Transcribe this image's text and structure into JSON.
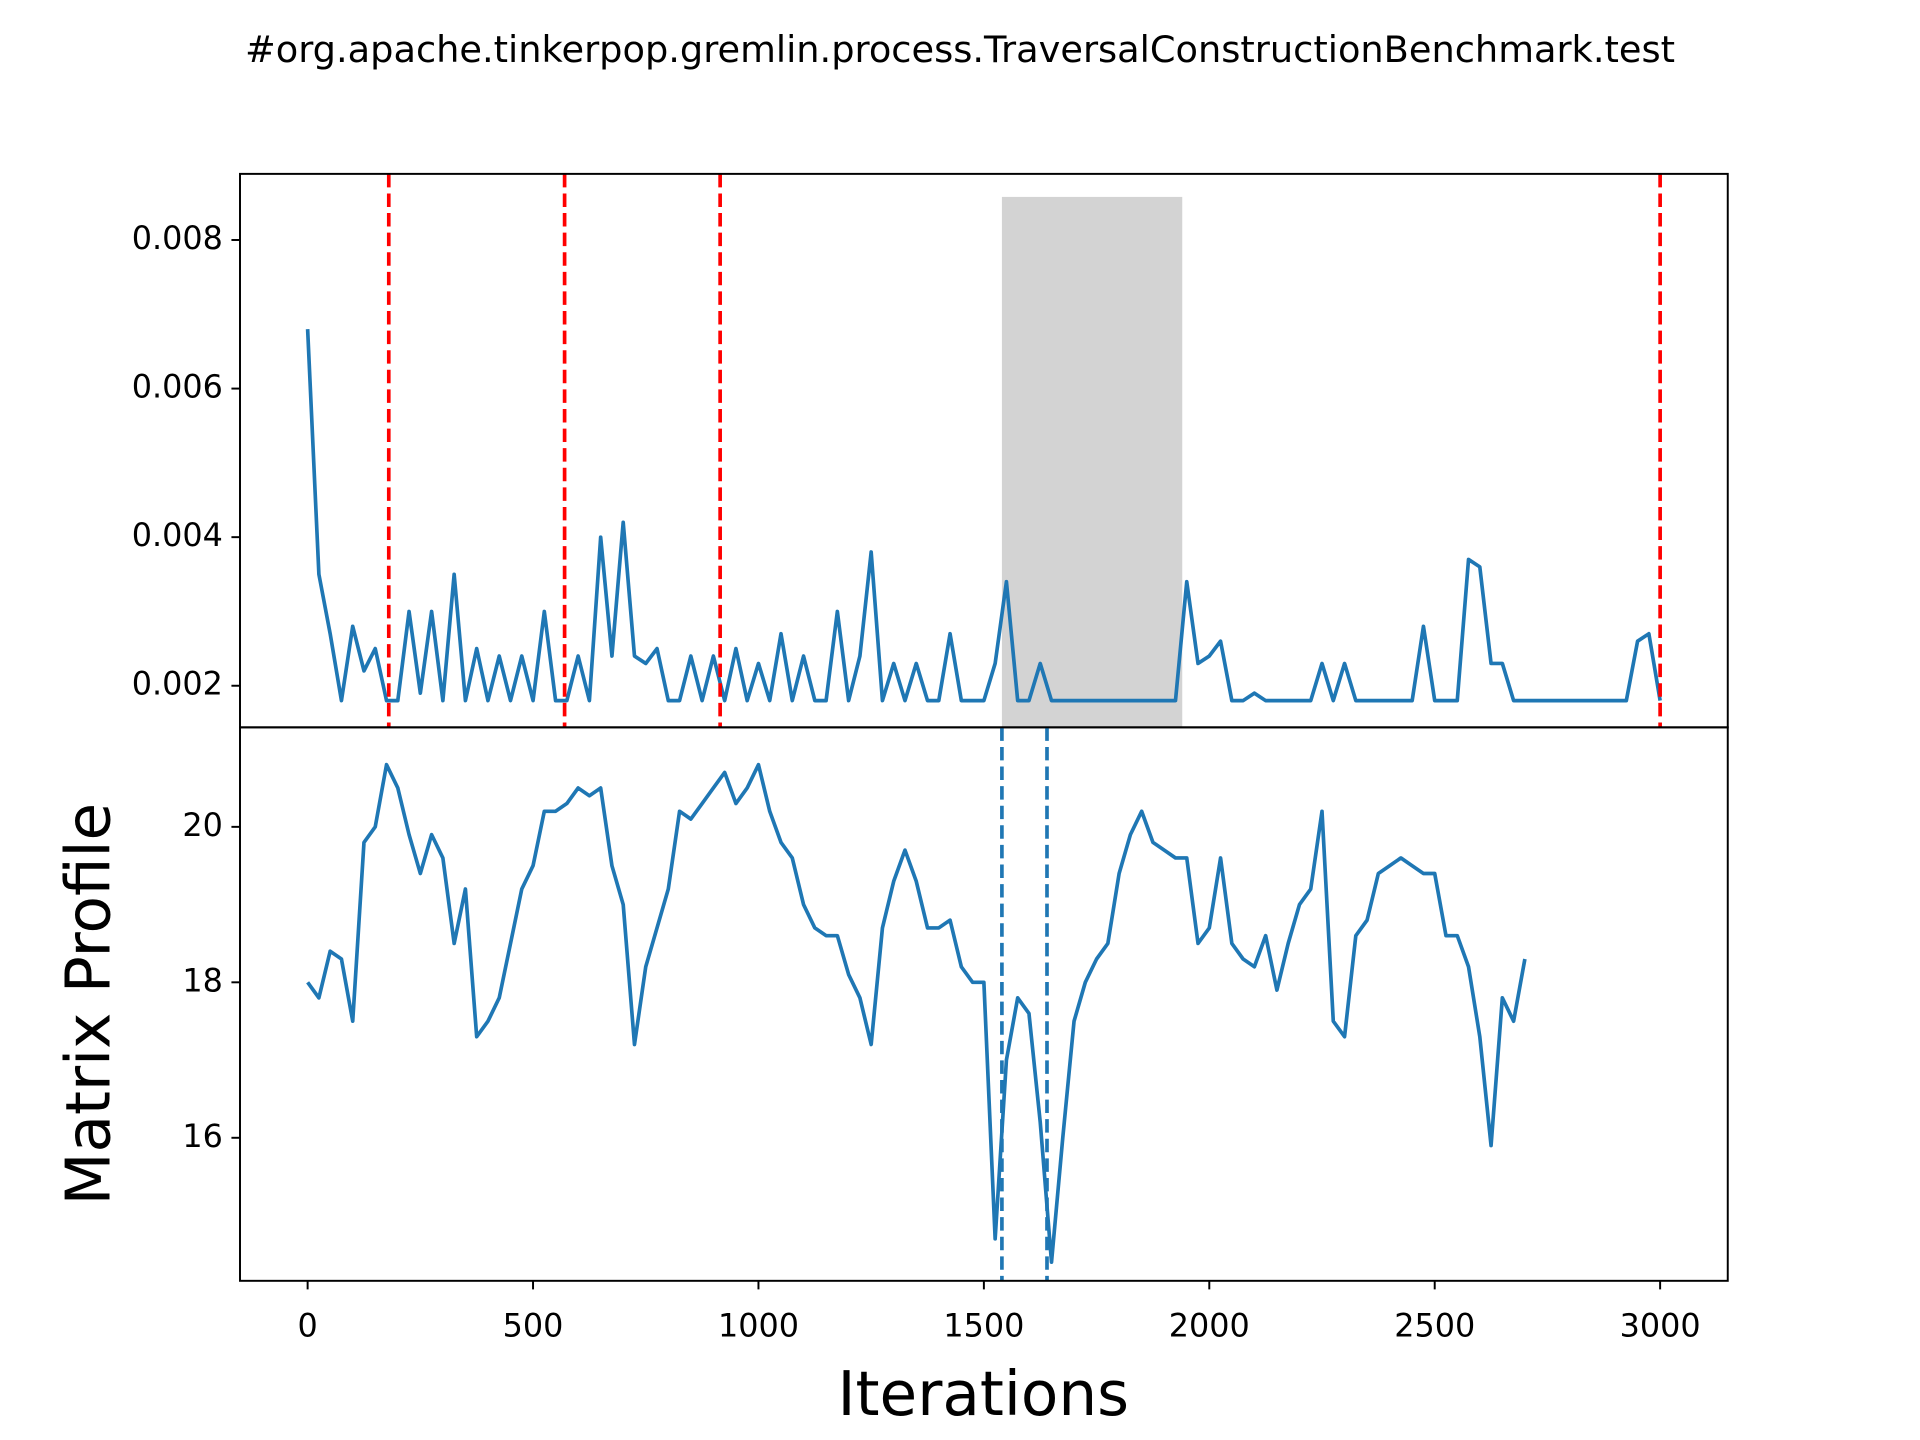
{
  "chart_data": [
    {
      "type": "line",
      "title": "#org.apache.tinkerpop.gremlin.process.TraversalConstructionBenchmark.test",
      "color": "#1f77b4",
      "x": [
        0,
        25,
        50,
        75,
        100,
        125,
        150,
        175,
        200,
        225,
        250,
        275,
        300,
        325,
        350,
        375,
        400,
        425,
        450,
        475,
        500,
        525,
        550,
        575,
        600,
        625,
        650,
        675,
        700,
        725,
        750,
        775,
        800,
        825,
        850,
        875,
        900,
        925,
        950,
        975,
        1000,
        1025,
        1050,
        1075,
        1100,
        1125,
        1150,
        1175,
        1200,
        1225,
        1250,
        1275,
        1300,
        1325,
        1350,
        1375,
        1400,
        1425,
        1450,
        1475,
        1500,
        1525,
        1550,
        1575,
        1600,
        1625,
        1650,
        1675,
        1700,
        1725,
        1750,
        1775,
        1800,
        1825,
        1850,
        1875,
        1900,
        1925,
        1950,
        1975,
        2000,
        2025,
        2050,
        2075,
        2100,
        2125,
        2150,
        2175,
        2200,
        2225,
        2250,
        2275,
        2300,
        2325,
        2350,
        2375,
        2400,
        2425,
        2450,
        2475,
        2500,
        2525,
        2550,
        2575,
        2600,
        2625,
        2650,
        2675,
        2700,
        2725,
        2750,
        2775,
        2800,
        2825,
        2850,
        2875,
        2900,
        2925,
        2950,
        2975,
        3000
      ],
      "values": [
        0.0068,
        0.0035,
        0.0027,
        0.0018,
        0.0028,
        0.0022,
        0.0025,
        0.0018,
        0.0018,
        0.003,
        0.0019,
        0.003,
        0.0018,
        0.0035,
        0.0018,
        0.0025,
        0.0018,
        0.0024,
        0.0018,
        0.0024,
        0.0018,
        0.003,
        0.0018,
        0.0018,
        0.0024,
        0.0018,
        0.004,
        0.0024,
        0.0042,
        0.0024,
        0.0023,
        0.0025,
        0.0018,
        0.0018,
        0.0024,
        0.0018,
        0.0024,
        0.0018,
        0.0025,
        0.0018,
        0.0023,
        0.0018,
        0.0027,
        0.0018,
        0.0024,
        0.0018,
        0.0018,
        0.003,
        0.0018,
        0.0024,
        0.0038,
        0.0018,
        0.0023,
        0.0018,
        0.0023,
        0.0018,
        0.0018,
        0.0027,
        0.0018,
        0.0018,
        0.0018,
        0.0023,
        0.0034,
        0.0018,
        0.0018,
        0.0023,
        0.0018,
        0.0018,
        0.0018,
        0.0018,
        0.0018,
        0.0018,
        0.0018,
        0.0018,
        0.0018,
        0.0018,
        0.0018,
        0.0018,
        0.0034,
        0.0023,
        0.0024,
        0.0026,
        0.0018,
        0.0018,
        0.0019,
        0.0018,
        0.0018,
        0.0018,
        0.0018,
        0.0018,
        0.0023,
        0.0018,
        0.0023,
        0.0018,
        0.0018,
        0.0018,
        0.0018,
        0.0018,
        0.0018,
        0.0028,
        0.0018,
        0.0018,
        0.0018,
        0.0037,
        0.0036,
        0.0023,
        0.0023,
        0.0018,
        0.0018,
        0.0018,
        0.0018,
        0.0018,
        0.0018,
        0.0018,
        0.0018,
        0.0018,
        0.0018,
        0.0018,
        0.0026,
        0.0027,
        0.0018
      ],
      "xlim": [
        -150,
        3150
      ],
      "ylim": [
        0.00144,
        0.00889
      ],
      "yticks": [
        0.002,
        0.004,
        0.006,
        0.008
      ],
      "vlines": {
        "values": [
          180,
          570,
          915,
          3000
        ],
        "color": "#ff0000",
        "style": "dashed"
      },
      "span": {
        "x": [
          1540,
          1940
        ],
        "top": 0.00858,
        "color": "#d3d3d3"
      }
    },
    {
      "type": "line",
      "xlabel": "Iterations",
      "ylabel": "Matrix Profile",
      "color": "#1f77b4",
      "x": [
        0,
        25,
        50,
        75,
        100,
        125,
        150,
        175,
        200,
        225,
        250,
        275,
        300,
        325,
        350,
        375,
        400,
        425,
        450,
        475,
        500,
        525,
        550,
        575,
        600,
        625,
        650,
        675,
        700,
        725,
        750,
        775,
        800,
        825,
        850,
        875,
        900,
        925,
        950,
        975,
        1000,
        1025,
        1050,
        1075,
        1100,
        1125,
        1150,
        1175,
        1200,
        1225,
        1250,
        1275,
        1300,
        1325,
        1350,
        1375,
        1400,
        1425,
        1450,
        1475,
        1500,
        1525,
        1550,
        1575,
        1600,
        1625,
        1650,
        1675,
        1700,
        1725,
        1750,
        1775,
        1800,
        1825,
        1850,
        1875,
        1900,
        1925,
        1950,
        1975,
        2000,
        2025,
        2050,
        2075,
        2100,
        2125,
        2150,
        2175,
        2200,
        2225,
        2250,
        2275,
        2300,
        2325,
        2350,
        2375,
        2400,
        2425,
        2450,
        2475,
        2500,
        2525,
        2550,
        2575,
        2600,
        2625,
        2650,
        2675,
        2700
      ],
      "values": [
        18.0,
        17.8,
        18.4,
        18.3,
        17.5,
        19.8,
        20.0,
        20.8,
        20.5,
        19.9,
        19.4,
        19.9,
        19.6,
        18.5,
        19.2,
        17.3,
        17.5,
        17.8,
        18.5,
        19.2,
        19.5,
        20.2,
        20.2,
        20.3,
        20.5,
        20.4,
        20.5,
        19.5,
        19.0,
        17.2,
        18.2,
        18.7,
        19.2,
        20.2,
        20.1,
        20.3,
        20.5,
        20.7,
        20.3,
        20.5,
        20.8,
        20.2,
        19.8,
        19.6,
        19.0,
        18.7,
        18.6,
        18.6,
        18.1,
        17.8,
        17.2,
        18.7,
        19.3,
        19.7,
        19.3,
        18.7,
        18.7,
        18.8,
        18.2,
        18.0,
        18.0,
        14.7,
        17.0,
        17.8,
        17.6,
        16.2,
        14.4,
        16.0,
        17.5,
        18.0,
        18.3,
        18.5,
        19.4,
        19.9,
        20.2,
        19.8,
        19.7,
        19.6,
        19.6,
        18.5,
        18.7,
        19.6,
        18.5,
        18.3,
        18.2,
        18.6,
        17.9,
        18.5,
        19.0,
        19.2,
        20.2,
        17.5,
        17.3,
        18.6,
        18.8,
        19.4,
        19.5,
        19.6,
        19.5,
        19.4,
        19.4,
        18.6,
        18.6,
        18.2,
        17.3,
        15.9,
        17.8,
        17.5,
        18.3
      ],
      "xlim": [
        -150,
        3150
      ],
      "ylim": [
        14.16,
        21.28
      ],
      "yticks": [
        16,
        18,
        20
      ],
      "xticks": [
        0,
        500,
        1000,
        1500,
        2000,
        2500,
        3000
      ],
      "vlines": {
        "values": [
          1540,
          1640
        ],
        "color": "#1f77b4",
        "style": "dashed"
      }
    }
  ]
}
